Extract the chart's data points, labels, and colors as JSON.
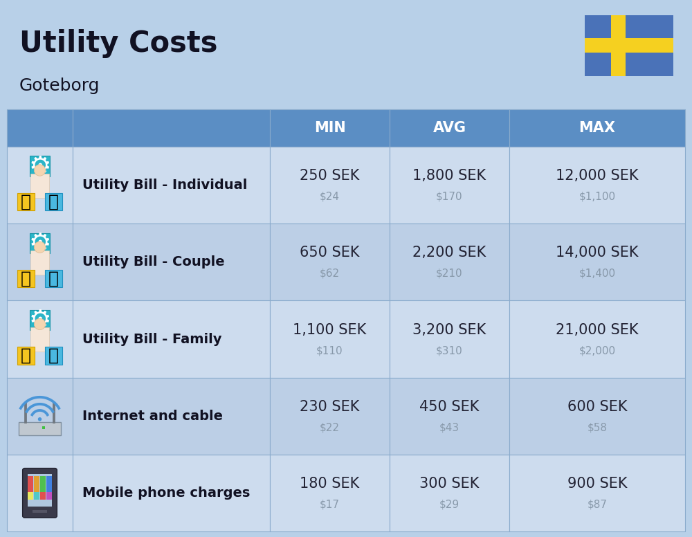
{
  "title": "Utility Costs",
  "subtitle": "Goteborg",
  "background_color": "#b8d0e8",
  "header_bg_color": "#5b8ec4",
  "header_text_color": "#ffffff",
  "row_bg_color_1": "#cddcee",
  "row_bg_color_2": "#bccfe6",
  "col_headers": [
    "MIN",
    "AVG",
    "MAX"
  ],
  "rows": [
    {
      "label": "Utility Bill - Individual",
      "min_sek": "250 SEK",
      "min_usd": "$24",
      "avg_sek": "1,800 SEK",
      "avg_usd": "$170",
      "max_sek": "12,000 SEK",
      "max_usd": "$1,100"
    },
    {
      "label": "Utility Bill - Couple",
      "min_sek": "650 SEK",
      "min_usd": "$62",
      "avg_sek": "2,200 SEK",
      "avg_usd": "$210",
      "max_sek": "14,000 SEK",
      "max_usd": "$1,400"
    },
    {
      "label": "Utility Bill - Family",
      "min_sek": "1,100 SEK",
      "min_usd": "$110",
      "avg_sek": "3,200 SEK",
      "avg_usd": "$310",
      "max_sek": "21,000 SEK",
      "max_usd": "$2,000"
    },
    {
      "label": "Internet and cable",
      "min_sek": "230 SEK",
      "min_usd": "$22",
      "avg_sek": "450 SEK",
      "avg_usd": "$43",
      "max_sek": "600 SEK",
      "max_usd": "$58"
    },
    {
      "label": "Mobile phone charges",
      "min_sek": "180 SEK",
      "min_usd": "$17",
      "avg_sek": "300 SEK",
      "avg_usd": "$29",
      "max_sek": "900 SEK",
      "max_usd": "$87"
    }
  ],
  "title_fontsize": 30,
  "subtitle_fontsize": 18,
  "header_fontsize": 15,
  "label_fontsize": 14,
  "value_fontsize": 15,
  "usd_fontsize": 11,
  "sek_color": "#222233",
  "usd_color": "#8899aa",
  "label_color": "#111122",
  "flag_blue": "#4a72b8",
  "flag_yellow": "#f5d020",
  "border_color": "#8aabcc"
}
